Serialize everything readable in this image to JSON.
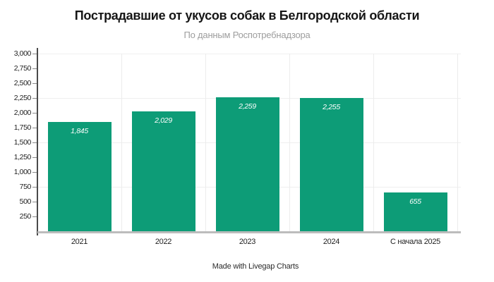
{
  "chart_data": {
    "type": "bar",
    "title": "Пострадавшие от укусов собак в Белгородской области",
    "subtitle": "По данным Роспотребнадзора",
    "categories": [
      "2021",
      "2022",
      "2023",
      "2024",
      "С начала 2025"
    ],
    "values": [
      1845,
      2029,
      2259,
      2255,
      655
    ],
    "value_labels": [
      "1,845",
      "2,029",
      "2,259",
      "2,255",
      "655"
    ],
    "ylabel": "",
    "xlabel": "",
    "ylim": [
      0,
      3000
    ],
    "ytick_step": 250,
    "ytick_labels": [
      "3,000",
      "2,750",
      "2,500",
      "2,250",
      "2,000",
      "1,750",
      "1,500",
      "1,250",
      "1,000",
      "750",
      "500",
      "250"
    ],
    "gridline_values": [
      3000,
      2250,
      1500,
      750
    ],
    "grid": true,
    "legend": false,
    "bar_color": "#0d9c77",
    "grid_color": "#efefef",
    "axis_color": "#4a4a4a",
    "baseline_color": "#bcbcbc",
    "value_label_color": "#ffffff"
  },
  "footer": {
    "text": "Made with Livegap Charts"
  }
}
